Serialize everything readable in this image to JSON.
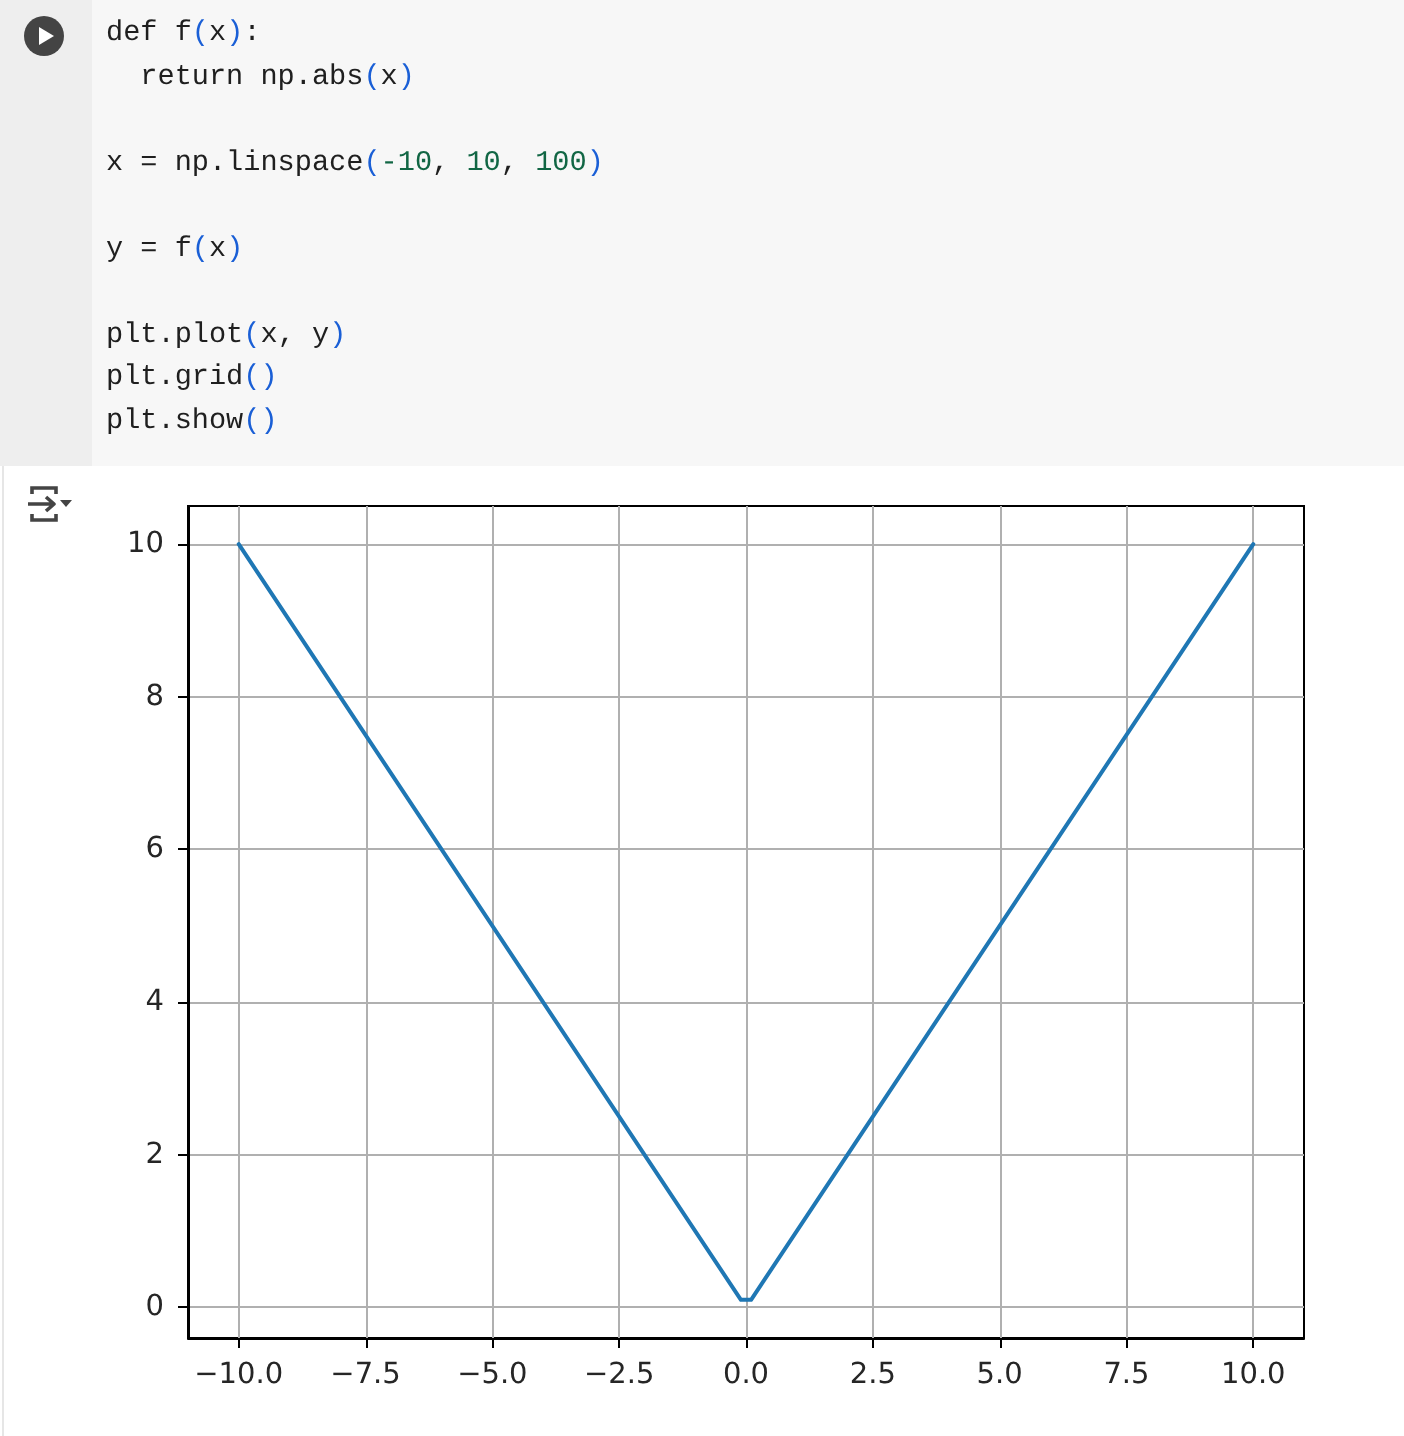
{
  "chart_data": {
    "type": "line",
    "annotations": [
      "def f(x):\n  return np.abs(x)\n\nx = np.linspace(-10, 10, 100)\n\ny = f(x)\n\nplt.plot(x, y)\nplt.grid()\nplt.show()"
    ],
    "x": [
      -10,
      -0.1,
      0.1,
      10
    ],
    "series": [
      {
        "color": "#1f77b4",
        "values": [
          10,
          0.1,
          0.1,
          10
        ]
      }
    ],
    "xlim": [
      -11,
      11
    ],
    "ylim": [
      -0.4,
      10.5
    ],
    "xticks": [
      {
        "value": -10,
        "label": "−10.0"
      },
      {
        "value": -7.5,
        "label": "−7.5"
      },
      {
        "value": -5,
        "label": "−5.0"
      },
      {
        "value": -2.5,
        "label": "−2.5"
      },
      {
        "value": 0,
        "label": "0.0"
      },
      2.5,
      {
        "value": 5,
        "label": "5.0"
      },
      7.5,
      {
        "value": 10,
        "label": "10.0"
      }
    ],
    "yticks": [
      0,
      2,
      4,
      6,
      8,
      10
    ],
    "grid": true,
    "marker": "none"
  }
}
